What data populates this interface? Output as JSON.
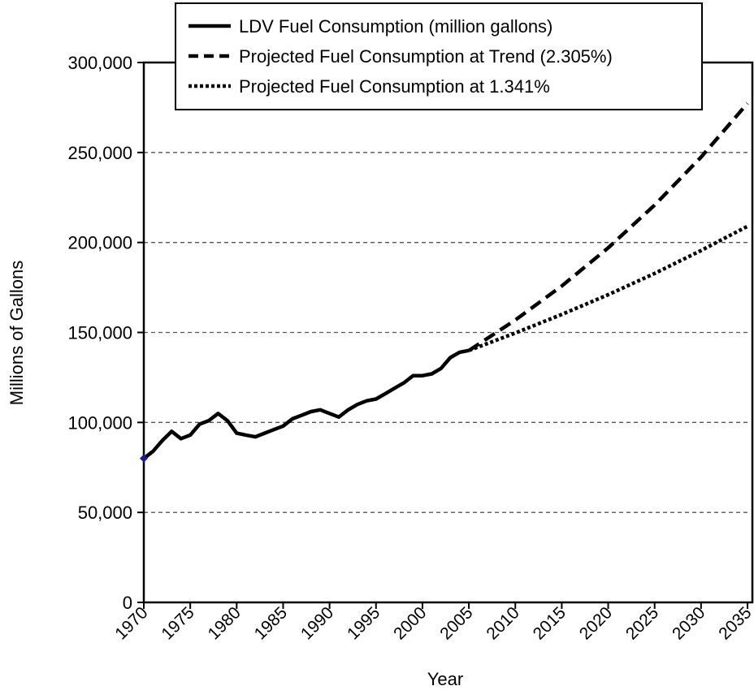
{
  "chart_data": {
    "type": "line",
    "x_label": "Year",
    "y_label": "Millions of Gallons",
    "xlim": [
      1970,
      2035
    ],
    "xticks": [
      1970,
      1975,
      1980,
      1985,
      1990,
      1995,
      2000,
      2005,
      2010,
      2015,
      2020,
      2025,
      2030,
      2035
    ],
    "ylim": [
      0,
      300000
    ],
    "yticks": [
      0,
      {
        "value": 50000,
        "label": "50,000"
      },
      {
        "value": 100000,
        "label": "100,000"
      },
      {
        "value": 150000,
        "label": "150,000"
      },
      {
        "value": 200000,
        "label": "200,000"
      },
      {
        "value": 250000,
        "label": "250,000"
      },
      {
        "value": 300000,
        "label": "300,000"
      }
    ],
    "grid": true,
    "legend": "top",
    "series": [
      {
        "name": "LDV Fuel Consumption (million gallons)",
        "color": "#000000",
        "style": "solid",
        "start_marker_color": "#1a1a9c",
        "x": [
          1970,
          1971,
          1972,
          1973,
          1974,
          1975,
          1976,
          1977,
          1978,
          1979,
          1980,
          1981,
          1982,
          1983,
          1984,
          1985,
          1986,
          1987,
          1988,
          1989,
          1990,
          1991,
          1992,
          1993,
          1994,
          1995,
          1996,
          1997,
          1998,
          1999,
          2000,
          2001,
          2002,
          2003,
          2004,
          2005
        ],
        "values": [
          80000,
          84000,
          90000,
          95000,
          91000,
          93000,
          99000,
          101000,
          105000,
          101000,
          94000,
          93000,
          92000,
          94000,
          96000,
          98000,
          102000,
          104000,
          106000,
          107000,
          105000,
          103000,
          107000,
          110000,
          112000,
          113000,
          116000,
          119000,
          122000,
          126000,
          126000,
          127000,
          130000,
          136000,
          139000,
          140000
        ]
      },
      {
        "name": "Projected Fuel Consumption at Trend (2.305%)",
        "color": "#000000",
        "style": "dashed",
        "x": [
          2005,
          2010,
          2015,
          2020,
          2025,
          2030,
          2035
        ],
        "values": [
          140000,
          156900,
          175800,
          197000,
          220800,
          247400,
          277300
        ]
      },
      {
        "name": "Projected Fuel Consumption at 1.341%",
        "color": "#000000",
        "style": "dotted",
        "x": [
          2005,
          2010,
          2015,
          2020,
          2025,
          2030,
          2035
        ],
        "values": [
          140000,
          149700,
          160000,
          171000,
          182800,
          195500,
          209000
        ]
      }
    ]
  }
}
